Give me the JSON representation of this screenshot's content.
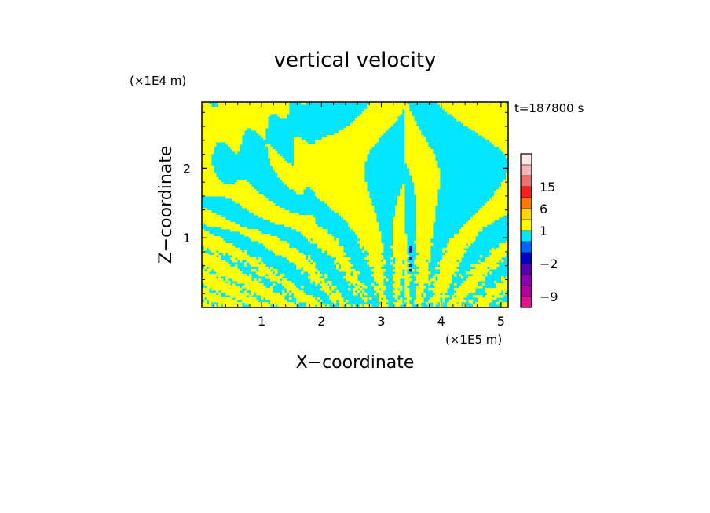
{
  "chart_data": {
    "type": "heatmap",
    "title": "vertical velocity",
    "xlabel": "X−coordinate",
    "ylabel": "Z−coordinate",
    "x_unit": "(×1E5 m)",
    "y_unit": "(×1E4 m)",
    "time_label": "t=187800  s",
    "xlim": [
      0,
      5.12
    ],
    "ylim": [
      0,
      2.95
    ],
    "x_ticks": [
      1,
      2,
      3,
      4,
      5
    ],
    "x_tick_labels": [
      "1",
      "2",
      "3",
      "4",
      "5"
    ],
    "y_ticks": [
      1,
      2
    ],
    "y_tick_labels": [
      "1",
      "2"
    ],
    "grid": false,
    "colorbar": {
      "levels": [
        -12,
        -9,
        -6,
        -4,
        -2,
        -1,
        0,
        1,
        3,
        6,
        10,
        15,
        20
      ],
      "colors": [
        "#e6148c",
        "#b4009c",
        "#8c00b4",
        "#5a00b4",
        "#0000c8",
        "#0064ff",
        "#00e6ff",
        "#ffff00",
        "#ffd700",
        "#ff7800",
        "#ff1e1e",
        "#f06e6e",
        "#f5b4b4",
        "#fce8e4"
      ],
      "tick_values": [
        15,
        6,
        1,
        -2,
        -9
      ],
      "tick_labels": [
        "15",
        "6",
        "1",
        "−2",
        "−9"
      ]
    },
    "field_colors": {
      "positive": "#ffff00",
      "negative": "#00e6ff",
      "strong_negative": "#5a00b4"
    },
    "description": ""
  }
}
